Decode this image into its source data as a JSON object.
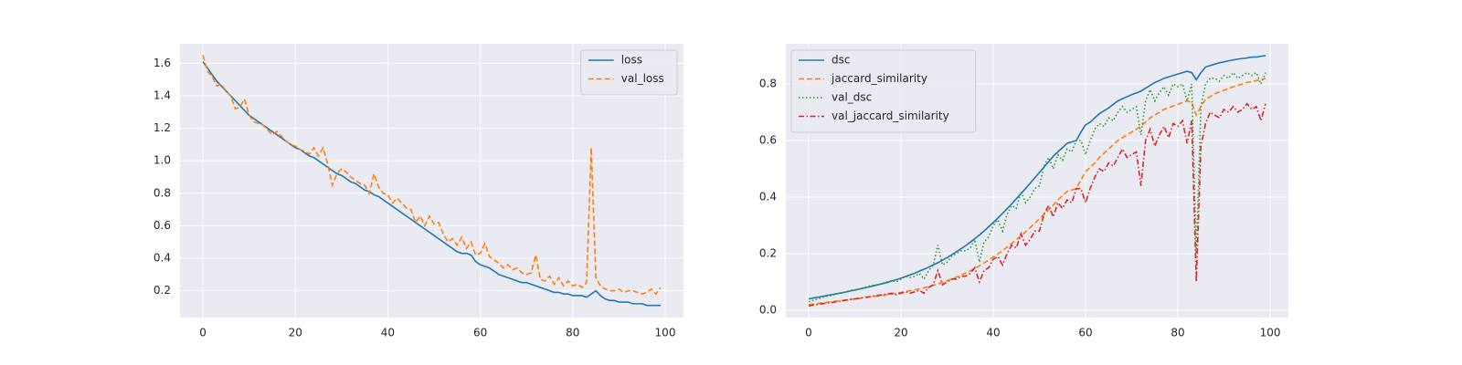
{
  "chart_data": [
    {
      "type": "line",
      "legend": "upper right",
      "grid": true,
      "x": [
        0,
        1,
        2,
        3,
        4,
        5,
        6,
        7,
        8,
        9,
        10,
        11,
        12,
        13,
        14,
        15,
        16,
        17,
        18,
        19,
        20,
        21,
        22,
        23,
        24,
        25,
        26,
        27,
        28,
        29,
        30,
        31,
        32,
        33,
        34,
        35,
        36,
        37,
        38,
        39,
        40,
        41,
        42,
        43,
        44,
        45,
        46,
        47,
        48,
        49,
        50,
        51,
        52,
        53,
        54,
        55,
        56,
        57,
        58,
        59,
        60,
        61,
        62,
        63,
        64,
        65,
        66,
        67,
        68,
        69,
        70,
        71,
        72,
        73,
        74,
        75,
        76,
        77,
        78,
        79,
        80,
        81,
        82,
        83,
        84,
        85,
        86,
        87,
        88,
        89,
        90,
        91,
        92,
        93,
        94,
        95,
        96,
        97,
        98,
        99
      ],
      "xlim": [
        -4.95,
        103.95
      ],
      "xticks": [
        0,
        20,
        40,
        60,
        80,
        100
      ],
      "ylim": [
        0.035,
        1.72
      ],
      "yticks": [
        0.2,
        0.4,
        0.6,
        0.8,
        {
          "value": 1,
          "label": "1.0"
        },
        1.2,
        1.4,
        1.6
      ],
      "series": [
        {
          "name": "loss",
          "color": "#1f77b4",
          "linestyle": "solid",
          "values": [
            1.61,
            1.57,
            1.53,
            1.49,
            1.46,
            1.43,
            1.4,
            1.37,
            1.34,
            1.31,
            1.28,
            1.26,
            1.24,
            1.22,
            1.2,
            1.18,
            1.16,
            1.14,
            1.12,
            1.1,
            1.08,
            1.07,
            1.05,
            1.03,
            1.02,
            1.0,
            0.98,
            0.96,
            0.94,
            0.92,
            0.91,
            0.89,
            0.87,
            0.86,
            0.84,
            0.82,
            0.81,
            0.79,
            0.78,
            0.76,
            0.74,
            0.72,
            0.7,
            0.68,
            0.66,
            0.64,
            0.62,
            0.6,
            0.58,
            0.56,
            0.54,
            0.52,
            0.5,
            0.48,
            0.46,
            0.44,
            0.43,
            0.43,
            0.42,
            0.38,
            0.36,
            0.35,
            0.34,
            0.32,
            0.3,
            0.29,
            0.28,
            0.27,
            0.26,
            0.25,
            0.25,
            0.24,
            0.23,
            0.22,
            0.21,
            0.2,
            0.19,
            0.19,
            0.18,
            0.18,
            0.17,
            0.17,
            0.17,
            0.16,
            0.18,
            0.2,
            0.17,
            0.15,
            0.14,
            0.14,
            0.13,
            0.13,
            0.13,
            0.12,
            0.12,
            0.12,
            0.11,
            0.11,
            0.11,
            0.11
          ]
        },
        {
          "name": "val_loss",
          "color": "#ff7f0e",
          "linestyle": "dashed",
          "values": [
            1.65,
            1.55,
            1.52,
            1.46,
            1.47,
            1.43,
            1.4,
            1.32,
            1.33,
            1.38,
            1.28,
            1.24,
            1.23,
            1.22,
            1.19,
            1.16,
            1.18,
            1.15,
            1.12,
            1.1,
            1.09,
            1.07,
            1.06,
            1.04,
            1.08,
            1.03,
            1.08,
            0.98,
            0.85,
            0.92,
            0.95,
            0.93,
            0.9,
            0.88,
            0.86,
            0.85,
            0.8,
            0.92,
            0.84,
            0.8,
            0.79,
            0.74,
            0.77,
            0.74,
            0.71,
            0.7,
            0.62,
            0.66,
            0.6,
            0.66,
            0.61,
            0.62,
            0.55,
            0.5,
            0.52,
            0.48,
            0.53,
            0.46,
            0.5,
            0.42,
            0.43,
            0.49,
            0.41,
            0.39,
            0.37,
            0.34,
            0.36,
            0.33,
            0.34,
            0.31,
            0.3,
            0.31,
            0.42,
            0.27,
            0.26,
            0.29,
            0.24,
            0.28,
            0.23,
            0.26,
            0.23,
            0.24,
            0.22,
            0.25,
            1.08,
            0.28,
            0.23,
            0.21,
            0.2,
            0.2,
            0.21,
            0.19,
            0.2,
            0.2,
            0.19,
            0.18,
            0.19,
            0.21,
            0.18,
            0.22
          ]
        }
      ]
    },
    {
      "type": "line",
      "legend": "upper left",
      "grid": true,
      "x": [
        0,
        1,
        2,
        3,
        4,
        5,
        6,
        7,
        8,
        9,
        10,
        11,
        12,
        13,
        14,
        15,
        16,
        17,
        18,
        19,
        20,
        21,
        22,
        23,
        24,
        25,
        26,
        27,
        28,
        29,
        30,
        31,
        32,
        33,
        34,
        35,
        36,
        37,
        38,
        39,
        40,
        41,
        42,
        43,
        44,
        45,
        46,
        47,
        48,
        49,
        50,
        51,
        52,
        53,
        54,
        55,
        56,
        57,
        58,
        59,
        60,
        61,
        62,
        63,
        64,
        65,
        66,
        67,
        68,
        69,
        70,
        71,
        72,
        73,
        74,
        75,
        76,
        77,
        78,
        79,
        80,
        81,
        82,
        83,
        84,
        85,
        86,
        87,
        88,
        89,
        90,
        91,
        92,
        93,
        94,
        95,
        96,
        97,
        98,
        99
      ],
      "xlim": [
        -4.95,
        103.95
      ],
      "xticks": [
        0,
        20,
        40,
        60,
        80,
        100
      ],
      "ylim": [
        -0.026,
        0.942
      ],
      "yticks": [
        {
          "value": 0,
          "label": "0.0"
        },
        0.2,
        0.4,
        0.6,
        0.8
      ],
      "series": [
        {
          "name": "dsc",
          "color": "#1f77b4",
          "linestyle": "solid",
          "values": [
            0.04,
            0.043,
            0.046,
            0.049,
            0.052,
            0.055,
            0.058,
            0.061,
            0.064,
            0.068,
            0.071,
            0.075,
            0.078,
            0.082,
            0.086,
            0.09,
            0.094,
            0.098,
            0.103,
            0.108,
            0.113,
            0.119,
            0.125,
            0.131,
            0.138,
            0.145,
            0.152,
            0.16,
            0.168,
            0.177,
            0.186,
            0.196,
            0.206,
            0.217,
            0.228,
            0.24,
            0.253,
            0.266,
            0.28,
            0.295,
            0.31,
            0.326,
            0.342,
            0.359,
            0.376,
            0.394,
            0.412,
            0.43,
            0.449,
            0.468,
            0.487,
            0.506,
            0.525,
            0.544,
            0.56,
            0.575,
            0.59,
            0.595,
            0.6,
            0.63,
            0.655,
            0.665,
            0.68,
            0.695,
            0.705,
            0.715,
            0.728,
            0.74,
            0.748,
            0.755,
            0.762,
            0.768,
            0.775,
            0.785,
            0.795,
            0.805,
            0.812,
            0.82,
            0.825,
            0.83,
            0.835,
            0.84,
            0.845,
            0.84,
            0.815,
            0.84,
            0.86,
            0.865,
            0.87,
            0.875,
            0.878,
            0.882,
            0.885,
            0.888,
            0.89,
            0.892,
            0.895,
            0.895,
            0.898,
            0.9
          ]
        },
        {
          "name": "jaccard_similarity",
          "color": "#ff7f0e",
          "linestyle": "dashed",
          "values": [
            0.02,
            0.022,
            0.024,
            0.026,
            0.028,
            0.03,
            0.032,
            0.034,
            0.036,
            0.038,
            0.04,
            0.042,
            0.044,
            0.046,
            0.048,
            0.05,
            0.052,
            0.054,
            0.057,
            0.06,
            0.063,
            0.066,
            0.069,
            0.072,
            0.075,
            0.079,
            0.083,
            0.088,
            0.093,
            0.098,
            0.104,
            0.11,
            0.117,
            0.124,
            0.131,
            0.139,
            0.148,
            0.157,
            0.167,
            0.177,
            0.188,
            0.199,
            0.211,
            0.223,
            0.236,
            0.249,
            0.263,
            0.277,
            0.292,
            0.307,
            0.323,
            0.339,
            0.355,
            0.372,
            0.389,
            0.405,
            0.42,
            0.425,
            0.43,
            0.46,
            0.49,
            0.505,
            0.52,
            0.54,
            0.555,
            0.57,
            0.585,
            0.6,
            0.61,
            0.62,
            0.63,
            0.64,
            0.65,
            0.665,
            0.68,
            0.69,
            0.7,
            0.71,
            0.716,
            0.722,
            0.728,
            0.734,
            0.74,
            0.735,
            0.69,
            0.72,
            0.745,
            0.755,
            0.765,
            0.772,
            0.778,
            0.784,
            0.79,
            0.795,
            0.8,
            0.805,
            0.808,
            0.812,
            0.815,
            0.82
          ]
        },
        {
          "name": "val_dsc",
          "color": "#2ca02c",
          "linestyle": "dotted",
          "values": [
            0.03,
            0.035,
            0.04,
            0.045,
            0.05,
            0.052,
            0.058,
            0.06,
            0.065,
            0.07,
            0.072,
            0.075,
            0.08,
            0.085,
            0.088,
            0.09,
            0.095,
            0.1,
            0.105,
            0.1,
            0.11,
            0.12,
            0.115,
            0.12,
            0.13,
            0.11,
            0.14,
            0.16,
            0.23,
            0.16,
            0.17,
            0.19,
            0.2,
            0.21,
            0.21,
            0.22,
            0.25,
            0.17,
            0.24,
            0.26,
            0.3,
            0.32,
            0.28,
            0.34,
            0.37,
            0.36,
            0.42,
            0.38,
            0.4,
            0.43,
            0.44,
            0.51,
            0.54,
            0.5,
            0.55,
            0.53,
            0.57,
            0.56,
            0.6,
            0.6,
            0.55,
            0.6,
            0.64,
            0.66,
            0.65,
            0.68,
            0.67,
            0.7,
            0.72,
            0.7,
            0.71,
            0.72,
            0.62,
            0.74,
            0.78,
            0.74,
            0.77,
            0.79,
            0.76,
            0.8,
            0.79,
            0.8,
            0.74,
            0.8,
            0.2,
            0.72,
            0.8,
            0.82,
            0.82,
            0.81,
            0.83,
            0.82,
            0.84,
            0.82,
            0.83,
            0.84,
            0.83,
            0.84,
            0.8,
            0.84
          ]
        },
        {
          "name": "val_jaccard_similarity",
          "color": "#d62728",
          "linestyle": "dashdot",
          "values": [
            0.015,
            0.018,
            0.02,
            0.023,
            0.025,
            0.027,
            0.03,
            0.032,
            0.035,
            0.038,
            0.04,
            0.042,
            0.045,
            0.047,
            0.05,
            0.052,
            0.055,
            0.057,
            0.06,
            0.055,
            0.06,
            0.065,
            0.06,
            0.065,
            0.07,
            0.06,
            0.08,
            0.09,
            0.14,
            0.09,
            0.1,
            0.11,
            0.11,
            0.12,
            0.12,
            0.13,
            0.15,
            0.1,
            0.14,
            0.15,
            0.18,
            0.19,
            0.16,
            0.2,
            0.23,
            0.22,
            0.27,
            0.23,
            0.25,
            0.28,
            0.28,
            0.34,
            0.37,
            0.33,
            0.38,
            0.36,
            0.39,
            0.38,
            0.43,
            0.43,
            0.38,
            0.43,
            0.47,
            0.5,
            0.49,
            0.52,
            0.51,
            0.54,
            0.57,
            0.54,
            0.55,
            0.56,
            0.44,
            0.6,
            0.64,
            0.58,
            0.62,
            0.65,
            0.61,
            0.66,
            0.65,
            0.67,
            0.59,
            0.67,
            0.1,
            0.58,
            0.66,
            0.7,
            0.69,
            0.68,
            0.71,
            0.7,
            0.72,
            0.7,
            0.71,
            0.73,
            0.71,
            0.72,
            0.67,
            0.73
          ]
        }
      ]
    }
  ]
}
